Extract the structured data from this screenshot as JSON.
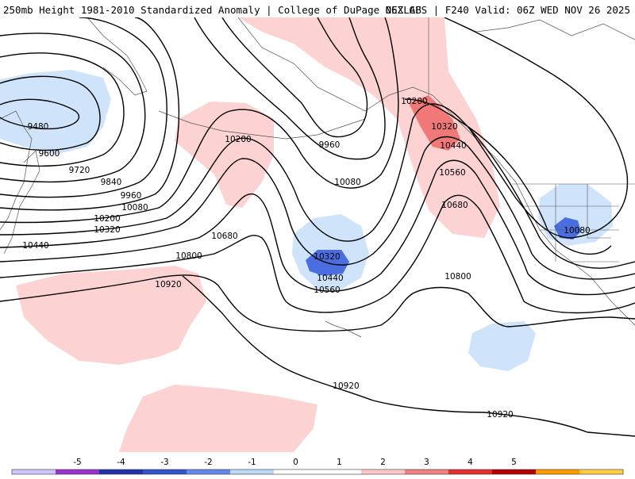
{
  "header": {
    "title": "250mb Height 1981-2010 Standardized Anomaly | College of DuPage NEXLAB",
    "run_info": "06Z GFS | F240 Valid: 06Z WED NOV 26 2025"
  },
  "map": {
    "contour_labels": [
      {
        "text": "9480",
        "value": 9480
      },
      {
        "text": "9600",
        "value": 9600
      },
      {
        "text": "9720",
        "value": 9720
      },
      {
        "text": "9840",
        "value": 9840
      },
      {
        "text": "9960",
        "value": 9960
      },
      {
        "text": "10080",
        "value": 10080
      },
      {
        "text": "10200",
        "value": 10200
      },
      {
        "text": "10320",
        "value": 10320
      },
      {
        "text": "10440",
        "value": 10440
      },
      {
        "text": "10200",
        "value": 10200
      },
      {
        "text": "9960",
        "value": 9960
      },
      {
        "text": "10080",
        "value": 10080
      },
      {
        "text": "10680",
        "value": 10680
      },
      {
        "text": "10800",
        "value": 10800
      },
      {
        "text": "10920",
        "value": 10920
      },
      {
        "text": "10320",
        "value": 10320
      },
      {
        "text": "10440",
        "value": 10440
      },
      {
        "text": "10560",
        "value": 10560
      },
      {
        "text": "10200",
        "value": 10200
      },
      {
        "text": "10320",
        "value": 10320
      },
      {
        "text": "10440",
        "value": 10440
      },
      {
        "text": "10560",
        "value": 10560
      },
      {
        "text": "10680",
        "value": 10680
      },
      {
        "text": "10800",
        "value": 10800
      },
      {
        "text": "10080",
        "value": 10080
      },
      {
        "text": "10920",
        "value": 10920
      },
      {
        "text": "10920",
        "value": 10920
      }
    ]
  },
  "colorbar": {
    "ticks": [
      "-5",
      "-4",
      "-3",
      "-2",
      "-1",
      "0",
      "1",
      "2",
      "3",
      "4",
      "5"
    ],
    "colors": [
      "#c8c8ff",
      "#9933cc",
      "#2233aa",
      "#3355cc",
      "#6688ee",
      "#bcd9f7",
      "#ffffff",
      "#ffffff",
      "#ffc8c8",
      "#f08080",
      "#e03030",
      "#b40000",
      "#ff9900",
      "#ffcc44"
    ],
    "anomaly_colors": {
      "minus1": "#cfe4fb",
      "minus2": "#4a6ee0",
      "plus1": "#fcd2d2",
      "plus2": "#f07878"
    }
  }
}
